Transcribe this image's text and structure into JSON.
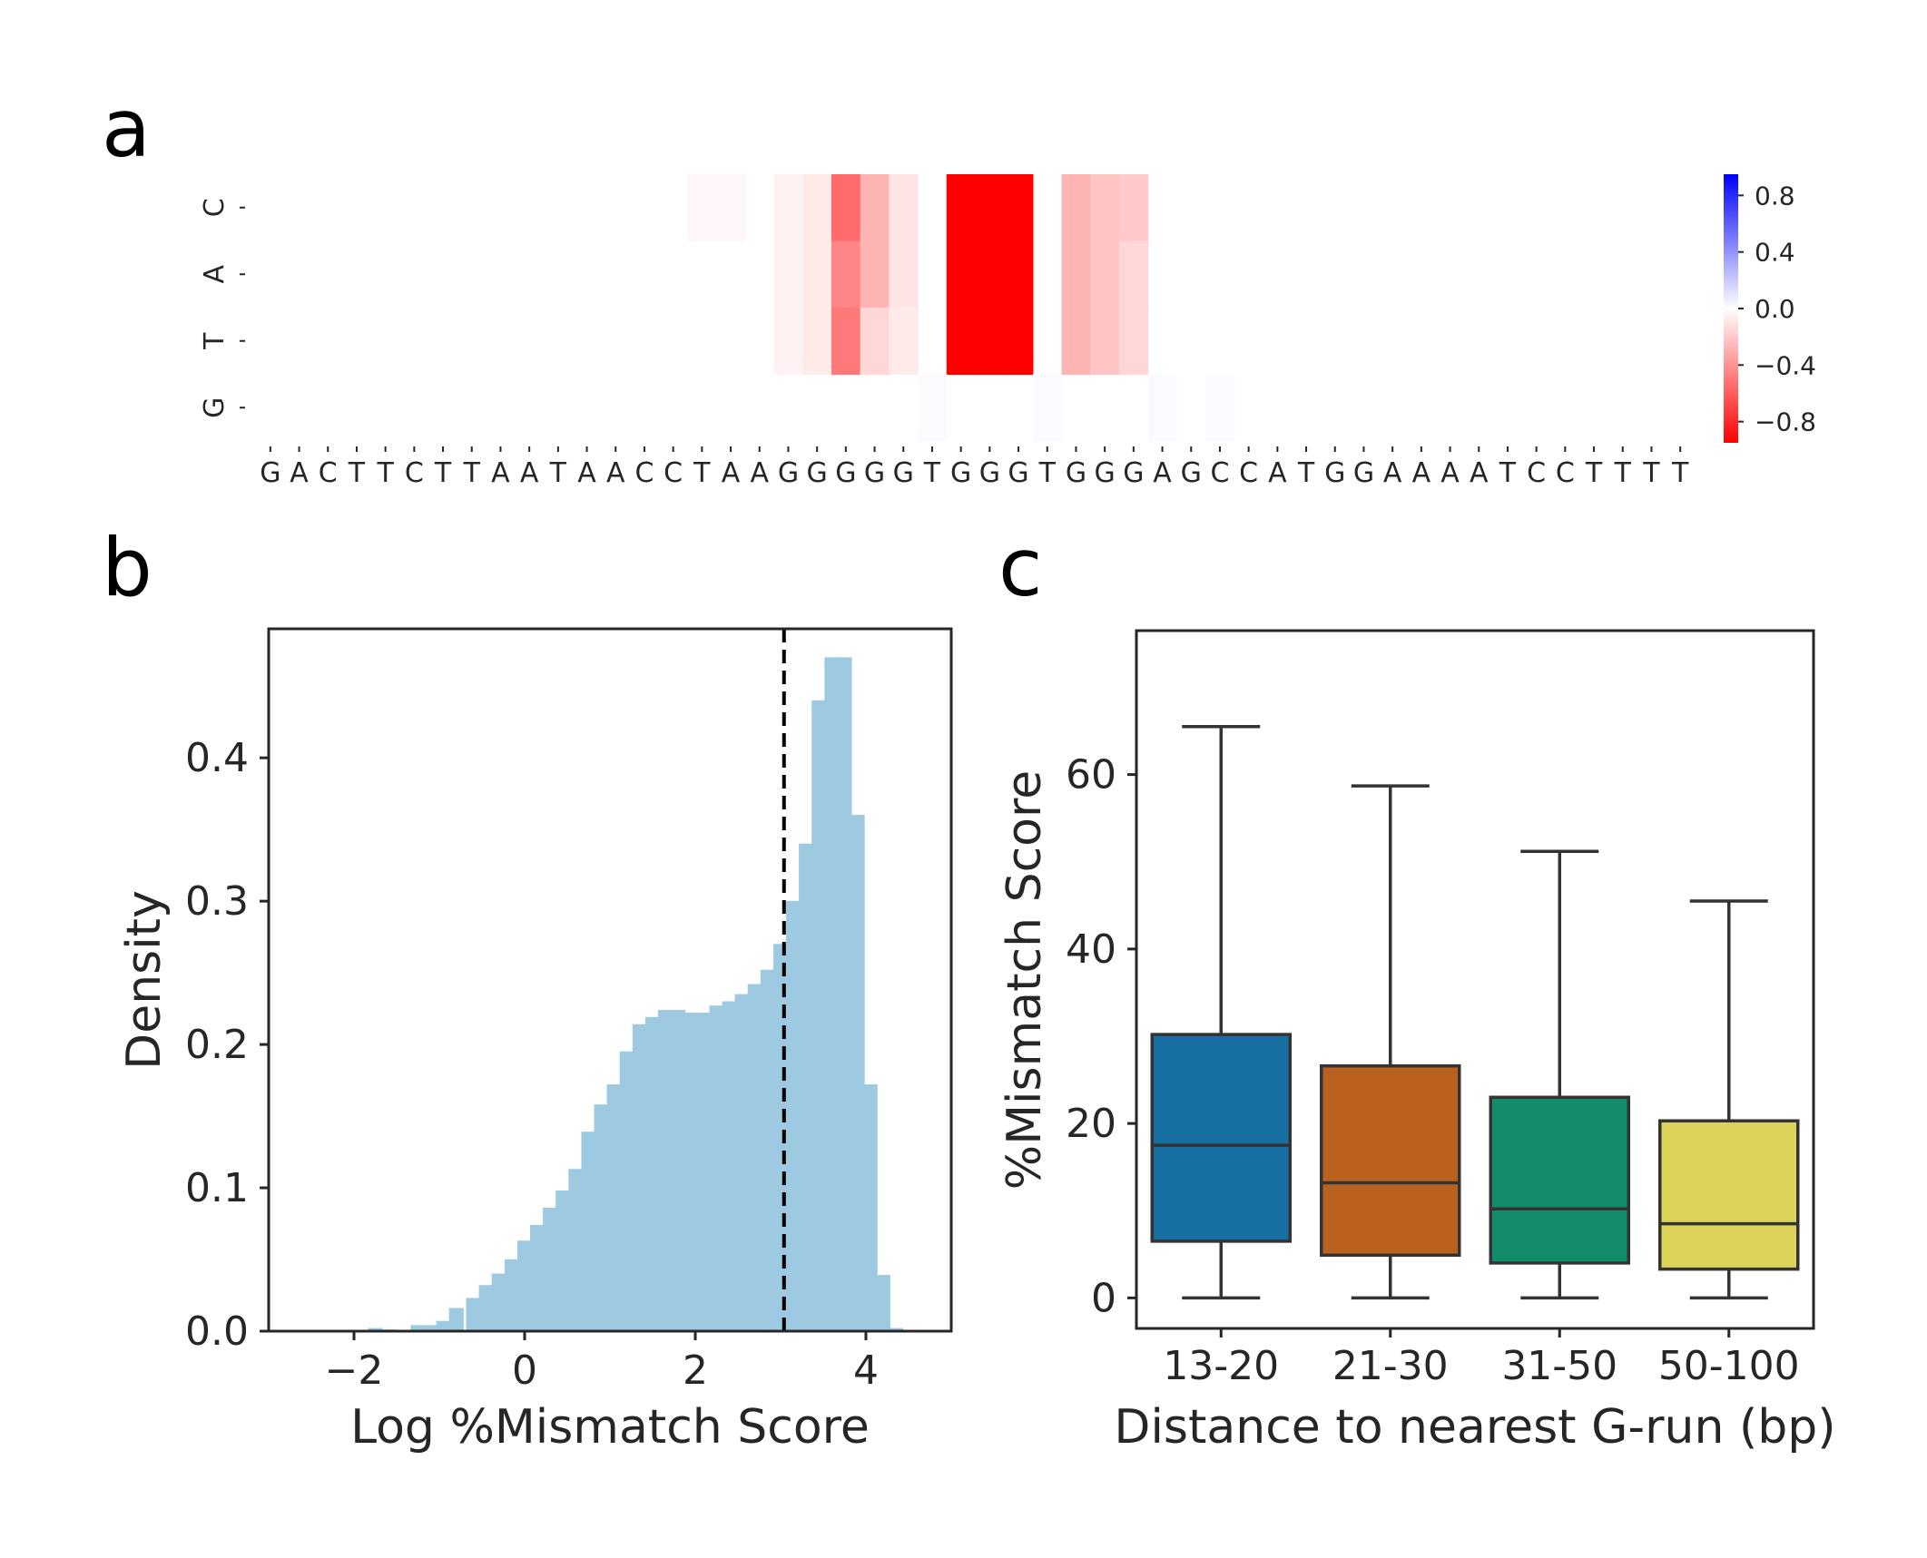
{
  "panels": {
    "a": "a",
    "b": "b",
    "c": "c"
  },
  "chart_data": [
    {
      "type": "heatmap",
      "sequence": [
        "G",
        "A",
        "C",
        "T",
        "T",
        "C",
        "T",
        "T",
        "A",
        "A",
        "T",
        "A",
        "A",
        "C",
        "C",
        "T",
        "A",
        "A",
        "G",
        "G",
        "G",
        "G",
        "G",
        "T",
        "G",
        "G",
        "G",
        "T",
        "G",
        "G",
        "G",
        "A",
        "G",
        "C",
        "C",
        "A",
        "T",
        "G",
        "G",
        "A",
        "A",
        "A",
        "A",
        "T",
        "C",
        "C",
        "T",
        "T",
        "T",
        "T"
      ],
      "rows": [
        "C",
        "A",
        "T",
        "G"
      ],
      "colorbar": {
        "ticks": [
          "0.8",
          "0.4",
          "0.0",
          "−0.4",
          "−0.8"
        ],
        "tick_values": [
          0.8,
          0.4,
          0.0,
          -0.4,
          -0.8
        ],
        "range": [
          -0.95,
          0.95
        ],
        "colors": {
          "negative": "#ff0000",
          "zero": "#ffffff",
          "positive": "#0000ff"
        }
      },
      "cells": [
        {
          "row": 0,
          "col": 15,
          "v": -0.03
        },
        {
          "row": 0,
          "col": 16,
          "v": -0.03
        },
        {
          "row": 0,
          "col": 18,
          "v": -0.05
        },
        {
          "row": 0,
          "col": 19,
          "v": -0.08
        },
        {
          "row": 0,
          "col": 20,
          "v": -0.55
        },
        {
          "row": 0,
          "col": 21,
          "v": -0.28
        },
        {
          "row": 0,
          "col": 22,
          "v": -0.1
        },
        {
          "row": 0,
          "col": 24,
          "v": -0.97
        },
        {
          "row": 0,
          "col": 25,
          "v": -1.0
        },
        {
          "row": 0,
          "col": 26,
          "v": -0.97
        },
        {
          "row": 0,
          "col": 28,
          "v": -0.28
        },
        {
          "row": 0,
          "col": 29,
          "v": -0.22
        },
        {
          "row": 0,
          "col": 30,
          "v": -0.2
        },
        {
          "row": 1,
          "col": 18,
          "v": -0.05
        },
        {
          "row": 1,
          "col": 19,
          "v": -0.08
        },
        {
          "row": 1,
          "col": 20,
          "v": -0.45
        },
        {
          "row": 1,
          "col": 21,
          "v": -0.28
        },
        {
          "row": 1,
          "col": 22,
          "v": -0.1
        },
        {
          "row": 1,
          "col": 24,
          "v": -0.97
        },
        {
          "row": 1,
          "col": 25,
          "v": -1.0
        },
        {
          "row": 1,
          "col": 26,
          "v": -0.97
        },
        {
          "row": 1,
          "col": 28,
          "v": -0.28
        },
        {
          "row": 1,
          "col": 29,
          "v": -0.22
        },
        {
          "row": 1,
          "col": 30,
          "v": -0.15
        },
        {
          "row": 2,
          "col": 18,
          "v": -0.05
        },
        {
          "row": 2,
          "col": 19,
          "v": -0.08
        },
        {
          "row": 2,
          "col": 20,
          "v": -0.5
        },
        {
          "row": 2,
          "col": 21,
          "v": -0.15
        },
        {
          "row": 2,
          "col": 22,
          "v": -0.08
        },
        {
          "row": 2,
          "col": 24,
          "v": -0.97
        },
        {
          "row": 2,
          "col": 25,
          "v": -1.0
        },
        {
          "row": 2,
          "col": 26,
          "v": -0.97
        },
        {
          "row": 2,
          "col": 28,
          "v": -0.28
        },
        {
          "row": 2,
          "col": 29,
          "v": -0.22
        },
        {
          "row": 2,
          "col": 30,
          "v": -0.15
        },
        {
          "row": 3,
          "col": 23,
          "v": 0.015
        },
        {
          "row": 3,
          "col": 27,
          "v": 0.02
        },
        {
          "row": 3,
          "col": 31,
          "v": 0.015
        },
        {
          "row": 3,
          "col": 33,
          "v": 0.02
        }
      ]
    },
    {
      "type": "bar",
      "xlabel": "Log %Mismatch Score",
      "ylabel": "Density",
      "xlim": [
        -3.0,
        5.0
      ],
      "ylim": [
        0.0,
        0.49
      ],
      "xticks": [
        -2,
        0,
        2,
        4
      ],
      "xtick_labels": [
        "−2",
        "0",
        "2",
        "4"
      ],
      "yticks": [
        0.0,
        0.1,
        0.2,
        0.3,
        0.4
      ],
      "ytick_labels": [
        "0.0",
        "0.1",
        "0.2",
        "0.3",
        "0.4"
      ],
      "bin_width": 0.1667,
      "bar_color": "#9ecae1",
      "vline": {
        "x": 3.04,
        "style": "dashed",
        "color": "#000000"
      },
      "bins": [
        [
          -1.75,
          0.002
        ],
        [
          -1.6,
          0.001
        ],
        [
          -1.25,
          0.004
        ],
        [
          -1.1,
          0.004
        ],
        [
          -0.95,
          0.007
        ],
        [
          -0.8,
          0.016
        ],
        [
          -0.6,
          0.023
        ],
        [
          -0.45,
          0.032
        ],
        [
          -0.3,
          0.04
        ],
        [
          -0.15,
          0.05
        ],
        [
          0.0,
          0.063
        ],
        [
          0.15,
          0.074
        ],
        [
          0.3,
          0.086
        ],
        [
          0.45,
          0.098
        ],
        [
          0.6,
          0.113
        ],
        [
          0.75,
          0.139
        ],
        [
          0.9,
          0.158
        ],
        [
          1.05,
          0.172
        ],
        [
          1.2,
          0.195
        ],
        [
          1.35,
          0.214
        ],
        [
          1.5,
          0.219
        ],
        [
          1.65,
          0.224
        ],
        [
          1.8,
          0.224
        ],
        [
          1.95,
          0.222
        ],
        [
          2.1,
          0.222
        ],
        [
          2.25,
          0.227
        ],
        [
          2.4,
          0.23
        ],
        [
          2.55,
          0.235
        ],
        [
          2.7,
          0.242
        ],
        [
          2.85,
          0.252
        ],
        [
          3.0,
          0.27
        ],
        [
          3.15,
          0.3
        ],
        [
          3.3,
          0.34
        ],
        [
          3.45,
          0.44
        ],
        [
          3.6,
          0.47
        ],
        [
          3.75,
          0.47
        ],
        [
          3.9,
          0.36
        ],
        [
          4.05,
          0.172
        ],
        [
          4.2,
          0.039
        ],
        [
          4.35,
          0.002
        ]
      ]
    },
    {
      "type": "box",
      "xlabel": "Distance to nearest G-run (bp)",
      "ylabel": "%Mismatch Score",
      "ylim": [
        -3.5,
        76.5
      ],
      "yticks": [
        0,
        20,
        40,
        60
      ],
      "ytick_labels": [
        "0",
        "20",
        "40",
        "60"
      ],
      "boxes": [
        {
          "label": "13-20",
          "min": 0,
          "q1": 6.5,
          "median": 17.5,
          "q3": 30.2,
          "max": 65.5,
          "color": "#176fa1"
        },
        {
          "label": "21-30",
          "min": 0,
          "q1": 4.9,
          "median": 13.2,
          "q3": 26.6,
          "max": 58.7,
          "color": "#b9611e"
        },
        {
          "label": "31-50",
          "min": 0,
          "q1": 4.0,
          "median": 10.2,
          "q3": 23.0,
          "max": 51.2,
          "color": "#138c6c"
        },
        {
          "label": "50-100",
          "min": 0,
          "q1": 3.3,
          "median": 8.5,
          "q3": 20.3,
          "max": 45.5,
          "color": "#dbd35a"
        }
      ]
    }
  ]
}
